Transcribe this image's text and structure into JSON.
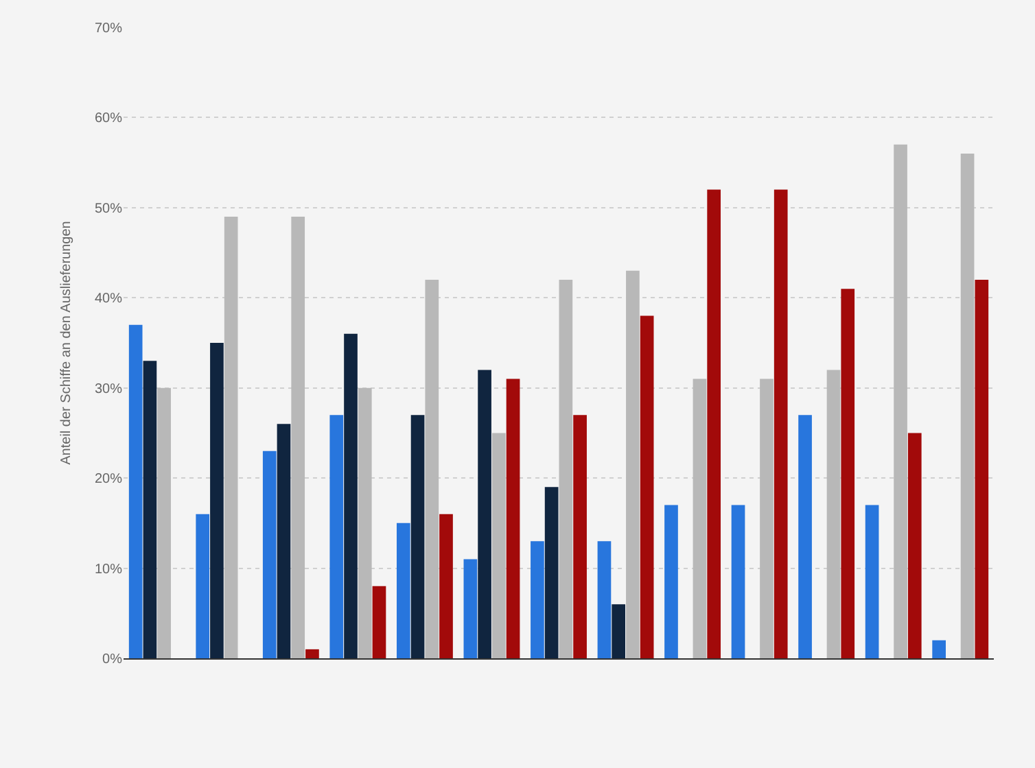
{
  "chart_data": {
    "type": "bar",
    "ylabel": "Anteil der Schiffe an den Auslieferungen",
    "categories": [
      null,
      null,
      null,
      null,
      null,
      null,
      null,
      null,
      null,
      null,
      null,
      null,
      null
    ],
    "series": [
      {
        "color": "#2876dd",
        "values": [
          37,
          16,
          23,
          27,
          15,
          11,
          13,
          13,
          17,
          17,
          27,
          17,
          2
        ]
      },
      {
        "color": "#10253f",
        "values": [
          33,
          35,
          26,
          36,
          27,
          32,
          19,
          6,
          null,
          null,
          null,
          null,
          null
        ]
      },
      {
        "color": "#b8b8b8",
        "values": [
          30,
          49,
          49,
          30,
          42,
          25,
          42,
          43,
          31,
          31,
          32,
          57,
          56
        ]
      },
      {
        "color": "#a20a0a",
        "values": [
          null,
          null,
          1,
          8,
          16,
          31,
          27,
          38,
          52,
          52,
          41,
          25,
          42
        ]
      }
    ],
    "ylim": [
      0,
      70
    ],
    "yticks": [
      {
        "value": 0,
        "label": "0%"
      },
      {
        "value": 10,
        "label": "10%"
      },
      {
        "value": 20,
        "label": "20%"
      },
      {
        "value": 30,
        "label": "30%"
      },
      {
        "value": 40,
        "label": "40%"
      },
      {
        "value": 50,
        "label": "50%"
      },
      {
        "value": 60,
        "label": "60%"
      },
      {
        "value": 70,
        "label": "70%"
      }
    ],
    "grid": "y",
    "tick_labels": "y"
  }
}
